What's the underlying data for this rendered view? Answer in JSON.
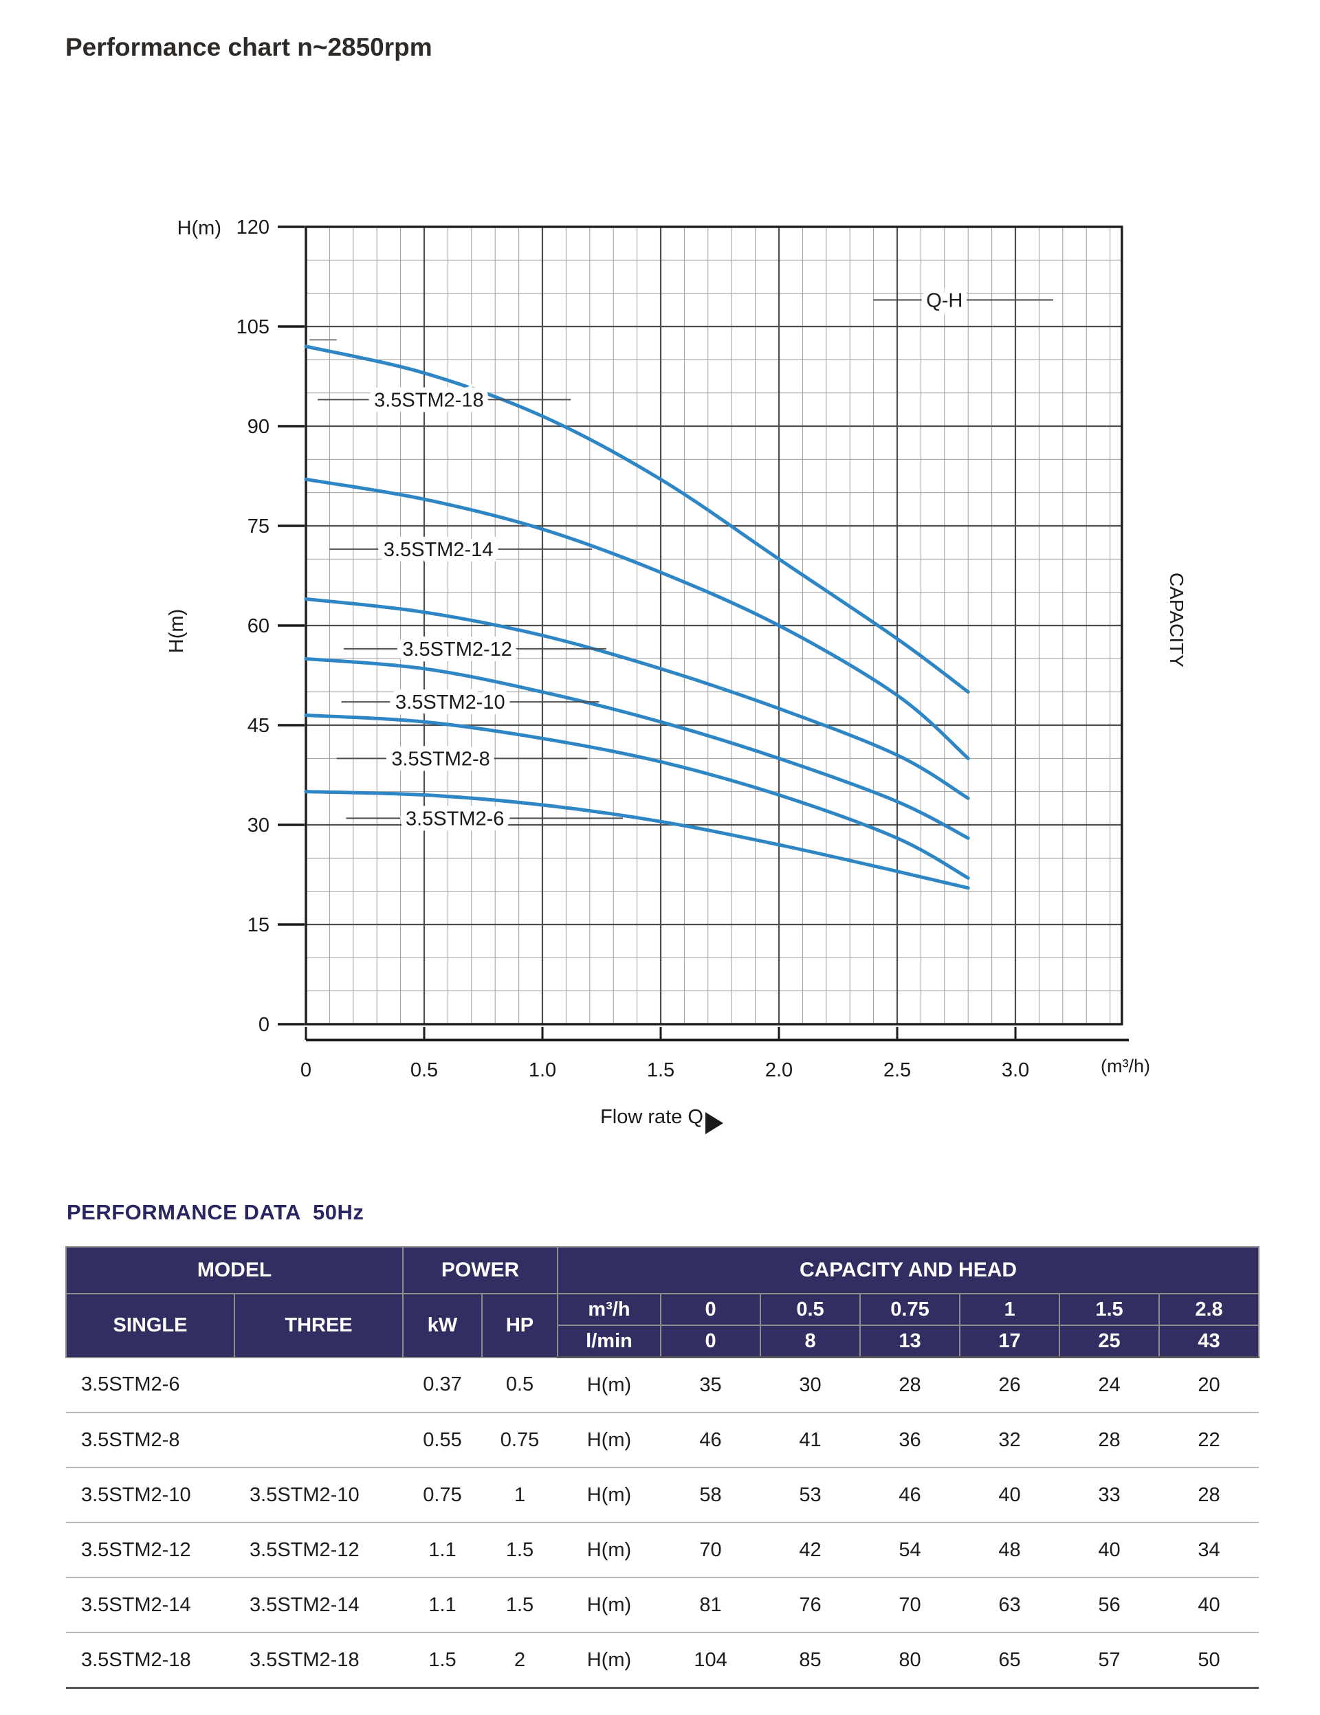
{
  "page": {
    "title": "Performance chart n~2850rpm"
  },
  "chart": {
    "y_axis_name_top": "H(m)",
    "y_axis_name_side": "H(m)",
    "x_unit_label": "(m³/h)",
    "x_axis_name": "Flow rate Q",
    "capacity_side_label": "CAPACITY",
    "curve_color": "#2e86c4",
    "labels": [
      {
        "text": "3.5STM2-18",
        "h": 94,
        "q1": 0.05,
        "q2": 1.12,
        "qc": 0.52
      },
      {
        "text": "3.5STM2-14",
        "h": 71.5,
        "q1": 0.1,
        "q2": 1.21,
        "qc": 0.56
      },
      {
        "text": "3.5STM2-12",
        "h": 56.5,
        "q1": 0.16,
        "q2": 1.27,
        "qc": 0.64
      },
      {
        "text": "3.5STM2-10",
        "h": 48.5,
        "q1": 0.15,
        "q2": 1.24,
        "qc": 0.61
      },
      {
        "text": "3.5STM2-8",
        "h": 40,
        "q1": 0.13,
        "q2": 1.19,
        "qc": 0.57
      },
      {
        "text": "3.5STM2-6",
        "h": 31,
        "q1": 0.17,
        "q2": 1.34,
        "qc": 0.63
      },
      {
        "text": "Q-H",
        "h": 109,
        "q1": 2.4,
        "q2": 3.16,
        "qc": 2.7
      }
    ]
  },
  "chart_data": {
    "type": "line",
    "title": "Q-H",
    "xlabel": "Flow rate Q (m³/h)",
    "ylabel": "H(m)",
    "xlim": [
      0,
      3.45
    ],
    "ylim": [
      0,
      120
    ],
    "x_ticks": [
      0,
      0.5,
      1.0,
      1.5,
      2.0,
      2.5,
      3.0
    ],
    "x_tick_labels": [
      "0",
      "0.5",
      "1.0",
      "1.5",
      "2.0",
      "2.5",
      "3.0"
    ],
    "y_ticks": [
      0,
      15,
      30,
      45,
      60,
      75,
      90,
      105,
      120
    ],
    "grid": {
      "on": true,
      "minor_x": 0.1,
      "minor_y": 5,
      "major_x": 0.5,
      "major_y": 15
    },
    "legend_position": "labels-on-curves",
    "x": [
      0,
      0.5,
      1.0,
      1.5,
      2.0,
      2.5,
      2.8
    ],
    "series": [
      {
        "name": "3.5STM2-18",
        "y": [
          102,
          98,
          91.5,
          82,
          70,
          58,
          50
        ]
      },
      {
        "name": "3.5STM2-14",
        "y": [
          82,
          79,
          74.5,
          68,
          60,
          49.5,
          40
        ]
      },
      {
        "name": "3.5STM2-12",
        "y": [
          64,
          62,
          58.5,
          53.5,
          47.5,
          40.5,
          34
        ]
      },
      {
        "name": "3.5STM2-10",
        "y": [
          55,
          53.5,
          50,
          45.5,
          40,
          33.5,
          28
        ]
      },
      {
        "name": "3.5STM2-8",
        "y": [
          46.5,
          45.5,
          43,
          39.5,
          34.5,
          28,
          22
        ]
      },
      {
        "name": "3.5STM2-6",
        "y": [
          35,
          34.5,
          33,
          30.5,
          27,
          23,
          20.5
        ]
      }
    ]
  },
  "table": {
    "title": "PERFORMANCE DATA  50Hz",
    "header": {
      "model": "MODEL",
      "power": "POWER",
      "capacity": "CAPACITY AND HEAD",
      "single": "SINGLE",
      "three": "THREE",
      "kw": "kW",
      "hp": "HP",
      "unit_top": "m³/h",
      "unit_bottom": "l/min"
    },
    "capacity_m3h": [
      "0",
      "0.5",
      "0.75",
      "1",
      "1.5",
      "2.8"
    ],
    "capacity_lmin": [
      "0",
      "8",
      "13",
      "17",
      "25",
      "43"
    ],
    "head_unit": "H(m)",
    "rows": [
      {
        "single": "3.5STM2-6",
        "three": "",
        "kw": "0.37",
        "hp": "0.5",
        "head": [
          "35",
          "30",
          "28",
          "26",
          "24",
          "20"
        ]
      },
      {
        "single": "3.5STM2-8",
        "three": "",
        "kw": "0.55",
        "hp": "0.75",
        "head": [
          "46",
          "41",
          "36",
          "32",
          "28",
          "22"
        ]
      },
      {
        "single": "3.5STM2-10",
        "three": "3.5STM2-10",
        "kw": "0.75",
        "hp": "1",
        "head": [
          "58",
          "53",
          "46",
          "40",
          "33",
          "28"
        ]
      },
      {
        "single": "3.5STM2-12",
        "three": "3.5STM2-12",
        "kw": "1.1",
        "hp": "1.5",
        "head": [
          "70",
          "42",
          "54",
          "48",
          "40",
          "34"
        ]
      },
      {
        "single": "3.5STM2-14",
        "three": "3.5STM2-14",
        "kw": "1.1",
        "hp": "1.5",
        "head": [
          "81",
          "76",
          "70",
          "63",
          "56",
          "40"
        ]
      },
      {
        "single": "3.5STM2-18",
        "three": "3.5STM2-18",
        "kw": "1.5",
        "hp": "2",
        "head": [
          "104",
          "85",
          "80",
          "65",
          "57",
          "50"
        ]
      }
    ],
    "colors": {
      "header_bg": "#322e62",
      "header_text": "#ffffff",
      "title_text": "#2a2663"
    }
  }
}
